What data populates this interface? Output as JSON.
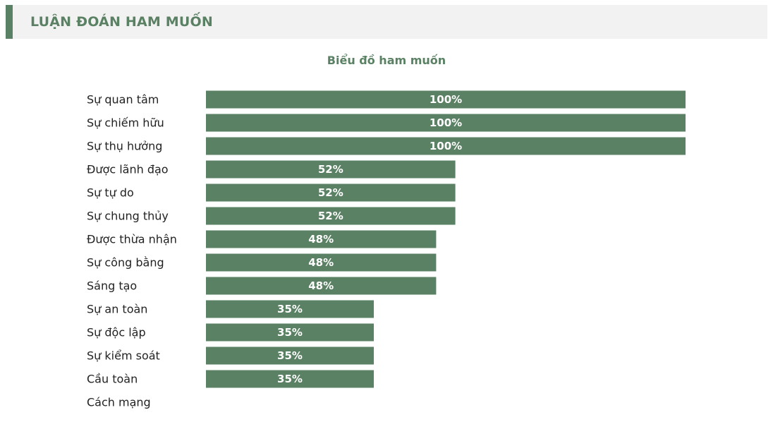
{
  "header": {
    "title": "LUẬN ĐOÁN HAM MUỐN"
  },
  "colors": {
    "accent": "#5a8163",
    "header_bg": "#f2f2f2",
    "label": "#222222",
    "bar_text": "#ffffff"
  },
  "chart_data": {
    "type": "bar",
    "orientation": "horizontal",
    "title": "Biểu đồ ham muốn",
    "categories": [
      "Sự quan tâm",
      "Sự chiếm hữu",
      "Sự thụ hưởng",
      "Được lãnh đạo",
      "Sự tự do",
      "Sự chung thủy",
      "Được thừa nhận",
      "Sự công bằng",
      "Sáng tạo",
      "Sự an toàn",
      "Sự độc lập",
      "Sự kiểm soát",
      "Cầu toàn",
      "Cách mạng"
    ],
    "values": [
      100,
      100,
      100,
      52,
      52,
      52,
      48,
      48,
      48,
      35,
      35,
      35,
      35,
      0
    ],
    "value_labels": [
      "100%",
      "100%",
      "100%",
      "52%",
      "52%",
      "52%",
      "48%",
      "48%",
      "48%",
      "35%",
      "35%",
      "35%",
      "35%",
      ""
    ],
    "xlim": [
      0,
      100
    ],
    "grid": false,
    "legend": "none"
  }
}
